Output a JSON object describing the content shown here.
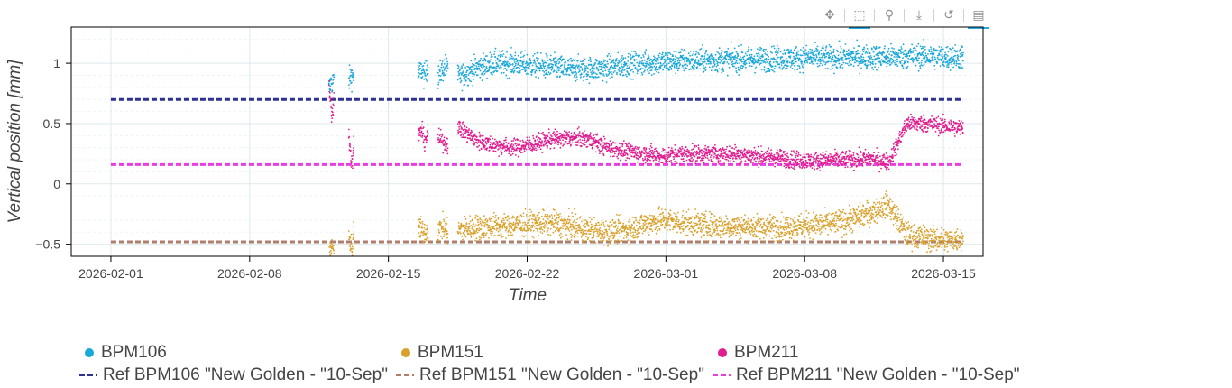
{
  "toolbar": {
    "tools": [
      {
        "name": "pan-tool",
        "icon": "pan-icon",
        "glyph": "✥",
        "active": false
      },
      {
        "name": "box-zoom-tool",
        "icon": "box-zoom-icon",
        "glyph": "⬚",
        "active": true
      },
      {
        "name": "wheel-zoom-tool",
        "icon": "wheel-zoom-icon",
        "glyph": "⚲",
        "active": false
      },
      {
        "name": "save-tool",
        "icon": "download-icon",
        "glyph": "⤓",
        "active": false
      },
      {
        "name": "reset-tool",
        "icon": "reset-icon",
        "glyph": "↺",
        "active": false
      },
      {
        "name": "hover-tool",
        "icon": "hover-tooltip-icon",
        "glyph": "▤",
        "active": true
      }
    ]
  },
  "chart_data": {
    "type": "scatter",
    "title": "",
    "xlabel": "Time",
    "ylabel": "Vertical position [mm]",
    "x_range": [
      "2026-01-30",
      "2026-03-17"
    ],
    "ylim": [
      -0.6,
      1.3
    ],
    "x_ticks": [
      "2026-02-01",
      "2026-02-08",
      "2026-02-15",
      "2026-02-22",
      "2026-03-01",
      "2026-03-08",
      "2026-03-15"
    ],
    "y_ticks": [
      -0.5,
      0,
      0.5,
      1
    ],
    "y_tick_labels": [
      "−0.5",
      "0",
      "0.5",
      "1"
    ],
    "grid": true,
    "legend_placement": "bottom",
    "series": [
      {
        "name": "BPM106",
        "kind": "scatter",
        "color": "#1aa7d9",
        "segments": [
          {
            "start": "2026-02-12 00:00",
            "end": "2026-02-12 06:00",
            "values": [
              0.78,
              0.82,
              0.85,
              0.84,
              0.86
            ]
          },
          {
            "start": "2026-02-13 00:00",
            "end": "2026-02-13 06:00",
            "values": [
              0.85,
              0.88,
              0.9,
              0.89,
              0.91
            ]
          },
          {
            "start": "2026-02-16 12:00",
            "end": "2026-02-17 00:00",
            "values": [
              0.9,
              0.95,
              0.88,
              1.0
            ]
          },
          {
            "start": "2026-02-17 12:00",
            "end": "2026-02-18 00:00",
            "values": [
              0.88,
              0.95,
              1.0
            ]
          },
          {
            "start": "2026-02-18 12:00",
            "end": "2026-03-16 00:00",
            "values": [
              0.88,
              0.96,
              1.0,
              1.0,
              0.98,
              0.97,
              0.95,
              0.95,
              0.96,
              0.99,
              1.0,
              1.01,
              1.02,
              1.02,
              1.03,
              1.03,
              1.03,
              1.04,
              1.04,
              1.05,
              1.04,
              1.05,
              1.05,
              1.05,
              1.06,
              1.06,
              1.05,
              1.05
            ]
          }
        ],
        "spread": 0.05
      },
      {
        "name": "BPM151",
        "kind": "scatter",
        "color": "#d9a12b",
        "segments": [
          {
            "start": "2026-02-12 00:00",
            "end": "2026-02-12 06:00",
            "values": [
              -0.6,
              -0.55,
              -0.5,
              -0.58
            ]
          },
          {
            "start": "2026-02-13 00:00",
            "end": "2026-02-13 06:00",
            "values": [
              -0.5,
              -0.45,
              -0.55,
              -0.4
            ]
          },
          {
            "start": "2026-02-16 12:00",
            "end": "2026-02-17 00:00",
            "values": [
              -0.35,
              -0.4,
              -0.38
            ]
          },
          {
            "start": "2026-02-17 12:00",
            "end": "2026-02-18 00:00",
            "values": [
              -0.38,
              -0.36,
              -0.4
            ]
          },
          {
            "start": "2026-02-18 12:00",
            "end": "2026-03-16 00:00",
            "values": [
              -0.38,
              -0.36,
              -0.35,
              -0.34,
              -0.33,
              -0.32,
              -0.35,
              -0.38,
              -0.4,
              -0.38,
              -0.33,
              -0.3,
              -0.32,
              -0.34,
              -0.35,
              -0.35,
              -0.36,
              -0.36,
              -0.35,
              -0.34,
              -0.33,
              -0.3,
              -0.24,
              -0.17,
              -0.42,
              -0.45,
              -0.47,
              -0.45
            ]
          }
        ],
        "spread": 0.05
      },
      {
        "name": "BPM211",
        "kind": "scatter",
        "color": "#e01e8f",
        "segments": [
          {
            "start": "2026-02-12 00:00",
            "end": "2026-02-12 06:00",
            "values": [
              0.85,
              0.7,
              0.6,
              0.55,
              0.75
            ]
          },
          {
            "start": "2026-02-13 00:00",
            "end": "2026-02-13 06:00",
            "values": [
              0.45,
              0.3,
              0.2,
              0.15,
              0.35
            ]
          },
          {
            "start": "2026-02-16 12:00",
            "end": "2026-02-17 00:00",
            "values": [
              0.4,
              0.45,
              0.35,
              0.42
            ]
          },
          {
            "start": "2026-02-17 12:00",
            "end": "2026-02-18 00:00",
            "values": [
              0.38,
              0.35,
              0.33
            ]
          },
          {
            "start": "2026-02-18 12:00",
            "end": "2026-03-16 00:00",
            "values": [
              0.47,
              0.36,
              0.32,
              0.3,
              0.33,
              0.37,
              0.38,
              0.37,
              0.3,
              0.27,
              0.25,
              0.23,
              0.25,
              0.25,
              0.25,
              0.25,
              0.23,
              0.22,
              0.2,
              0.19,
              0.2,
              0.2,
              0.21,
              0.18,
              0.5,
              0.5,
              0.48,
              0.46
            ]
          }
        ],
        "spread": 0.035
      },
      {
        "name": "Ref BPM106 \"New Golden - \"10-Sep\"",
        "kind": "hline",
        "value": 0.7,
        "color": "#2f3192"
      },
      {
        "name": "Ref BPM151 \"New Golden - \"10-Sep\"",
        "kind": "hline",
        "value": -0.48,
        "color": "#b07d6b"
      },
      {
        "name": "Ref BPM211 \"New Golden - \"10-Sep\"",
        "kind": "hline",
        "value": 0.16,
        "color": "#e83ee0"
      }
    ],
    "ref_x_range": [
      "2026-02-01",
      "2026-03-16"
    ]
  },
  "legend": {
    "rows": [
      [
        {
          "label": "BPM106",
          "glyph": "dot",
          "color": "#1aa7d9"
        },
        {
          "label": "BPM151",
          "glyph": "dot",
          "color": "#d9a12b"
        },
        {
          "label": "BPM211",
          "glyph": "dot",
          "color": "#e01e8f"
        }
      ],
      [
        {
          "label": "Ref BPM106 \"New Golden - \"10-Sep\"",
          "glyph": "dash",
          "color": "#2f3192"
        },
        {
          "label": "Ref BPM151 \"New Golden - \"10-Sep\"",
          "glyph": "dash",
          "color": "#b07d6b"
        },
        {
          "label": "Ref BPM211 \"New Golden - \"10-Sep\"",
          "glyph": "dash",
          "color": "#e83ee0"
        }
      ]
    ]
  }
}
